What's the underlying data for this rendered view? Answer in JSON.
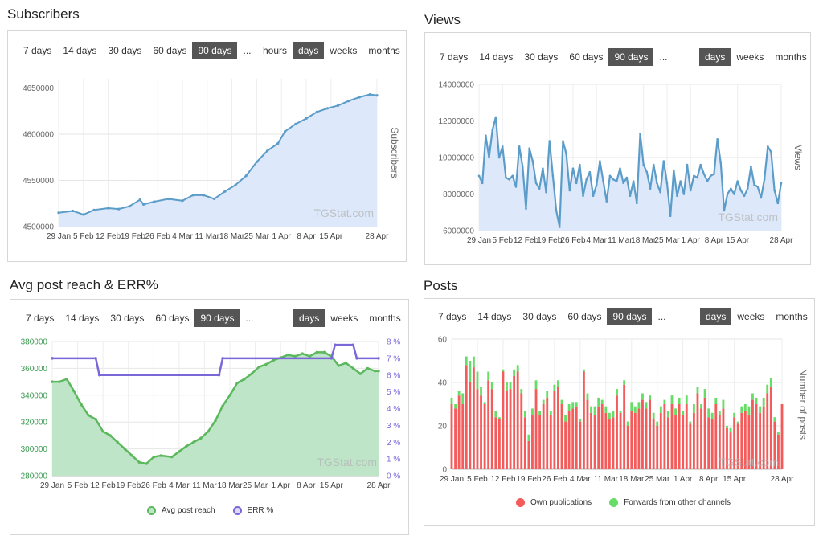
{
  "subscribers": {
    "title": "Subscribers",
    "range_tabs": [
      "7 days",
      "14 days",
      "30 days",
      "60 days",
      "90 days",
      "..."
    ],
    "unit_tabs": [
      "hours",
      "days",
      "weeks",
      "months"
    ],
    "active_range": "90 days",
    "active_unit": "days",
    "watermark": "TGStat.com",
    "chart_data": {
      "type": "area",
      "ylabel": "Subscribers",
      "ylim": [
        4500000,
        4660000
      ],
      "yticks": [
        "4500000",
        "4550000",
        "4600000",
        "4650000"
      ],
      "xticks": [
        "29 Jan",
        "5 Feb",
        "12 Feb",
        "19 Feb",
        "26 Feb",
        "4 Mar",
        "11 Mar",
        "18 Mar",
        "25 Mar",
        "1 Apr",
        "8 Apr",
        "15 Apr",
        "28 Apr"
      ],
      "x_range": [
        0,
        90
      ],
      "x_ticks_pos": [
        0,
        7,
        14,
        21,
        28,
        35,
        42,
        49,
        56,
        63,
        70,
        77,
        90
      ],
      "points": [
        [
          0,
          4515000
        ],
        [
          4,
          4517000
        ],
        [
          7,
          4513000
        ],
        [
          10,
          4518000
        ],
        [
          14,
          4520000
        ],
        [
          17,
          4519000
        ],
        [
          20,
          4522000
        ],
        [
          23,
          4529000
        ],
        [
          24,
          4524000
        ],
        [
          27,
          4527000
        ],
        [
          31,
          4530000
        ],
        [
          35,
          4528000
        ],
        [
          38,
          4534000
        ],
        [
          41,
          4534000
        ],
        [
          44,
          4530000
        ],
        [
          47,
          4538000
        ],
        [
          50,
          4545000
        ],
        [
          53,
          4555000
        ],
        [
          56,
          4570000
        ],
        [
          59,
          4582000
        ],
        [
          62,
          4590000
        ],
        [
          64,
          4603000
        ],
        [
          67,
          4611000
        ],
        [
          70,
          4617000
        ],
        [
          73,
          4624000
        ],
        [
          76,
          4628000
        ],
        [
          79,
          4631000
        ],
        [
          82,
          4636000
        ],
        [
          85,
          4640000
        ],
        [
          88,
          4643000
        ],
        [
          90,
          4642000
        ]
      ],
      "color": "#5b9cc9",
      "fill": "#dde9fb"
    }
  },
  "views": {
    "title": "Views",
    "range_tabs": [
      "7 days",
      "14 days",
      "30 days",
      "60 days",
      "90 days",
      "..."
    ],
    "unit_tabs": [
      "days",
      "weeks",
      "months"
    ],
    "active_range": "90 days",
    "active_unit": "days",
    "watermark": "TGStat.com",
    "chart_data": {
      "type": "area",
      "ylabel": "Views",
      "ylim": [
        6000000,
        14000000
      ],
      "yticks": [
        "6000000",
        "8000000",
        "10000000",
        "12000000",
        "14000000"
      ],
      "xticks": [
        "29 Jan",
        "5 Feb",
        "12 Feb",
        "19 Feb",
        "26 Feb",
        "4 Mar",
        "11 Mar",
        "18 Mar",
        "25 Mar",
        "1 Apr",
        "8 Apr",
        "15 Apr",
        "28 Apr"
      ],
      "x_range": [
        0,
        90
      ],
      "x_ticks_pos": [
        0,
        7,
        14,
        21,
        28,
        35,
        42,
        49,
        56,
        63,
        70,
        77,
        90
      ],
      "values": [
        9000000,
        8600000,
        11200000,
        10000000,
        11500000,
        12200000,
        10000000,
        10600000,
        8900000,
        8800000,
        9000000,
        8400000,
        10600000,
        9500000,
        7200000,
        10500000,
        9800000,
        8600000,
        8300000,
        9400000,
        8100000,
        10900000,
        9000000,
        7100000,
        6200000,
        10900000,
        10200000,
        8200000,
        9400000,
        8600000,
        9600000,
        7900000,
        8800000,
        9200000,
        7900000,
        8500000,
        9800000,
        8700000,
        7600000,
        9000000,
        8800000,
        8700000,
        9400000,
        8600000,
        8900000,
        7900000,
        8700000,
        7500000,
        11300000,
        9600000,
        9200000,
        8300000,
        9600000,
        8600000,
        8100000,
        9800000,
        8600000,
        6800000,
        9300000,
        7900000,
        8700000,
        8000000,
        9600000,
        8200000,
        9000000,
        8900000,
        9600000,
        9100000,
        8700000,
        9000000,
        9100000,
        11000000,
        9700000,
        7100000,
        8000000,
        8300000,
        8000000,
        8700000,
        8200000,
        7900000,
        8300000,
        9500000,
        8500000,
        8400000,
        7800000,
        8800000,
        10600000,
        10300000,
        8200000,
        7500000,
        8600000
      ],
      "color": "#5b9cc9",
      "fill": "#dde9fb"
    }
  },
  "reach": {
    "title": "Avg post reach & ERR%",
    "range_tabs": [
      "7 days",
      "14 days",
      "30 days",
      "60 days",
      "90 days",
      "..."
    ],
    "unit_tabs": [
      "days",
      "weeks",
      "months"
    ],
    "active_range": "90 days",
    "active_unit": "days",
    "watermark": "TGStat.com",
    "chart_data": {
      "type": "line",
      "ylim": [
        280000,
        380000
      ],
      "yticks": [
        "280000",
        "300000",
        "320000",
        "340000",
        "360000",
        "380000"
      ],
      "y2lim": [
        0,
        8
      ],
      "y2ticks": [
        "0 %",
        "1 %",
        "2 %",
        "3 %",
        "4 %",
        "5 %",
        "6 %",
        "7 %",
        "8 %"
      ],
      "xticks": [
        "29 Jan",
        "5 Feb",
        "12 Feb",
        "19 Feb",
        "26 Feb",
        "4 Mar",
        "11 Mar",
        "18 Mar",
        "25 Mar",
        "1 Apr",
        "8 Apr",
        "15 Apr",
        "28 Apr"
      ],
      "x_range": [
        0,
        90
      ],
      "x_ticks_pos": [
        0,
        7,
        14,
        21,
        28,
        35,
        42,
        49,
        56,
        63,
        70,
        77,
        90
      ],
      "series": [
        {
          "name": "Avg post reach",
          "axis": "left",
          "color": "#5cb85c",
          "fill": "#bfe5c9",
          "points": [
            [
              0,
              350000
            ],
            [
              2,
              350000
            ],
            [
              4,
              352000
            ],
            [
              6,
              343000
            ],
            [
              8,
              333000
            ],
            [
              10,
              325000
            ],
            [
              12,
              322000
            ],
            [
              14,
              313000
            ],
            [
              16,
              310000
            ],
            [
              18,
              305000
            ],
            [
              20,
              300000
            ],
            [
              22,
              295000
            ],
            [
              24,
              290000
            ],
            [
              26,
              289000
            ],
            [
              28,
              294000
            ],
            [
              30,
              295000
            ],
            [
              33,
              294000
            ],
            [
              35,
              298000
            ],
            [
              37,
              302000
            ],
            [
              39,
              305000
            ],
            [
              41,
              308000
            ],
            [
              43,
              313000
            ],
            [
              45,
              321000
            ],
            [
              47,
              332000
            ],
            [
              49,
              340000
            ],
            [
              51,
              349000
            ],
            [
              53,
              352000
            ],
            [
              55,
              356000
            ],
            [
              57,
              361000
            ],
            [
              59,
              363000
            ],
            [
              61,
              366000
            ],
            [
              63,
              368000
            ],
            [
              65,
              370000
            ],
            [
              67,
              369000
            ],
            [
              69,
              371000
            ],
            [
              71,
              369000
            ],
            [
              73,
              372000
            ],
            [
              75,
              372000
            ],
            [
              77,
              369000
            ],
            [
              79,
              362000
            ],
            [
              81,
              364000
            ],
            [
              83,
              360000
            ],
            [
              85,
              356000
            ],
            [
              87,
              360000
            ],
            [
              89,
              358000
            ],
            [
              90,
              358000
            ]
          ]
        },
        {
          "name": "ERR %",
          "axis": "right",
          "color": "#7b68d8",
          "points": [
            [
              0,
              7
            ],
            [
              12,
              7
            ],
            [
              13,
              6
            ],
            [
              46,
              6
            ],
            [
              47,
              7
            ],
            [
              77,
              7
            ],
            [
              78,
              7.8
            ],
            [
              83,
              7.8
            ],
            [
              84,
              7
            ],
            [
              90,
              7
            ]
          ]
        }
      ]
    }
  },
  "posts": {
    "title": "Posts",
    "range_tabs": [
      "7 days",
      "14 days",
      "30 days",
      "60 days",
      "90 days",
      "..."
    ],
    "unit_tabs": [
      "days",
      "weeks",
      "months"
    ],
    "active_range": "90 days",
    "active_unit": "days",
    "watermark": "TGStat.com",
    "chart_data": {
      "type": "bar",
      "ylabel": "Number of posts",
      "ylim": [
        0,
        60
      ],
      "yticks": [
        "0",
        "20",
        "40",
        "60"
      ],
      "xticks": [
        "29 Jan",
        "5 Feb",
        "12 Feb",
        "19 Feb",
        "26 Feb",
        "4 Mar",
        "11 Mar",
        "18 Mar",
        "25 Mar",
        "1 Apr",
        "8 Apr",
        "15 Apr",
        "28 Apr"
      ],
      "x_range": [
        0,
        90
      ],
      "x_ticks_pos": [
        0,
        7,
        14,
        21,
        28,
        35,
        42,
        49,
        56,
        63,
        70,
        77,
        90
      ],
      "stacked": true,
      "series": [
        {
          "name": "Own publications",
          "color": "#f45b5b",
          "values": [
            30,
            28,
            34,
            30,
            48,
            40,
            47,
            37,
            34,
            30,
            41,
            37,
            24,
            23,
            45,
            36,
            37,
            43,
            45,
            35,
            24,
            13,
            25,
            37,
            25,
            30,
            33,
            25,
            36,
            38,
            30,
            22,
            27,
            28,
            29,
            22,
            45,
            32,
            26,
            25,
            29,
            30,
            26,
            23,
            24,
            34,
            26,
            39,
            20,
            27,
            26,
            28,
            32,
            28,
            32,
            23,
            20,
            26,
            30,
            24,
            30,
            25,
            30,
            25,
            30,
            21,
            26,
            35,
            28,
            33,
            24,
            23,
            30,
            25,
            28,
            19,
            17,
            24,
            21,
            26,
            27,
            25,
            32,
            30,
            26,
            29,
            35,
            38,
            22,
            16,
            30
          ]
        },
        {
          "name": "Forwards from other channels",
          "color": "#66dd66",
          "values": [
            3,
            2,
            2,
            5,
            4,
            10,
            5,
            8,
            4,
            1,
            4,
            3,
            3,
            1,
            1,
            4,
            3,
            3,
            3,
            2,
            3,
            3,
            3,
            4,
            2,
            2,
            3,
            2,
            3,
            3,
            2,
            3,
            3,
            3,
            2,
            1,
            1,
            3,
            3,
            4,
            4,
            2,
            3,
            3,
            3,
            3,
            1,
            2,
            2,
            4,
            3,
            3,
            3,
            3,
            2,
            3,
            2,
            3,
            2,
            3,
            4,
            3,
            3,
            2,
            4,
            1,
            4,
            3,
            2,
            4,
            4,
            3,
            3,
            2,
            4,
            1,
            2,
            2,
            1,
            3,
            3,
            4,
            3,
            3,
            3,
            4,
            4,
            4,
            2,
            1,
            0
          ]
        }
      ]
    }
  }
}
